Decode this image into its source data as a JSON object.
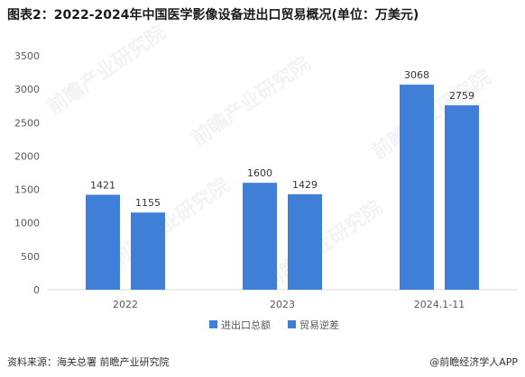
{
  "title": "图表2：2022-2024年中国医学影像设备进出口贸易概况(单位：万美元)",
  "footer": {
    "source": "资料来源：海关总署 前瞻产业研究院",
    "brand": "@前瞻经济学人APP"
  },
  "watermark": "前瞻产业研究院",
  "colors": {
    "series1": "#3f7fd8",
    "series2": "#3f7fd8",
    "axis": "#d9d9d9",
    "text": "#595959"
  },
  "chart_data": {
    "type": "bar",
    "categories": [
      "2022",
      "2023",
      "2024.1-11"
    ],
    "series": [
      {
        "name": "进出口总额",
        "values": [
          1421,
          1600,
          3068
        ]
      },
      {
        "name": "贸易逆差",
        "values": [
          1155,
          1429,
          2759
        ]
      }
    ],
    "ylim": [
      0,
      3500
    ],
    "yticks": [
      0,
      500,
      1000,
      1500,
      2000,
      2500,
      3000,
      3500
    ],
    "grid": false,
    "data_labels": true,
    "legend": "bottom"
  }
}
